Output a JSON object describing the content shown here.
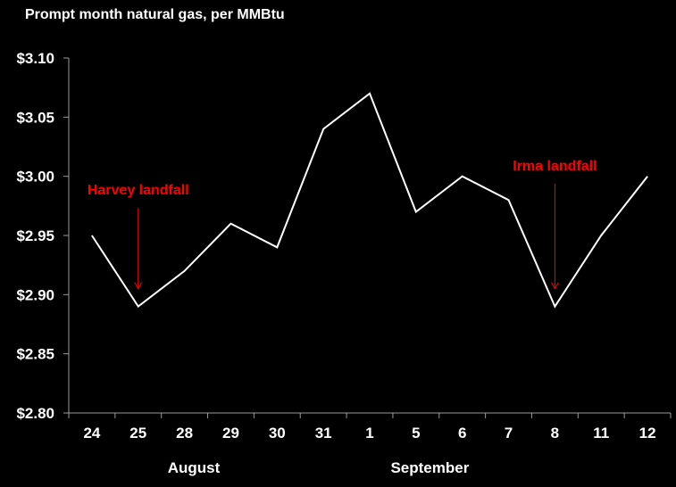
{
  "chart_data": {
    "type": "line",
    "title": "Prompt month natural gas, per MMBtu",
    "xlabel": "",
    "ylabel": "",
    "categories": [
      "24",
      "25",
      "28",
      "29",
      "30",
      "31",
      "1",
      "5",
      "6",
      "7",
      "8",
      "11",
      "12"
    ],
    "month_labels": [
      {
        "label": "August",
        "center_index": 2.2
      },
      {
        "label": "September",
        "center_index": 7.3
      }
    ],
    "series": [
      {
        "name": "Prompt month natural gas",
        "color": "#ffffff",
        "values": [
          2.95,
          2.89,
          2.92,
          2.96,
          2.94,
          3.04,
          3.07,
          2.97,
          3.0,
          2.98,
          2.89,
          2.95,
          3.0
        ]
      }
    ],
    "ylim": [
      2.8,
      3.1
    ],
    "yticks": [
      "$2.80",
      "$2.85",
      "$2.90",
      "$2.95",
      "$3.00",
      "$3.05",
      "$3.10"
    ],
    "grid": false,
    "annotations": [
      {
        "text": "Harvey landfall",
        "category_index": 1,
        "color": "#ff0000"
      },
      {
        "text": "Irma landfall",
        "category_index": 10,
        "color": "#ff0000"
      }
    ]
  }
}
